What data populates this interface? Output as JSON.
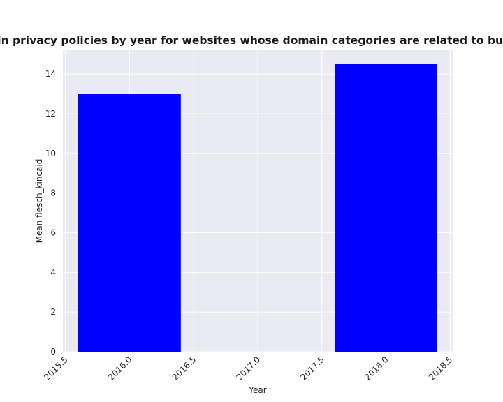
{
  "chart_data": {
    "type": "bar",
    "title": "Mean flesch_kincaid in privacy policies by year for websites whose domain categories are related to business;gambling;sports",
    "xlabel": "Year",
    "ylabel": "Mean flesch_kincaid",
    "x": [
      2016,
      2018
    ],
    "values": [
      13.0,
      14.5
    ],
    "bar_width": 0.8,
    "xlim": [
      2015.48,
      2018.52
    ],
    "ylim": [
      0,
      15.2
    ],
    "xticks": [
      2015.5,
      2016.0,
      2016.5,
      2017.0,
      2017.5,
      2018.0,
      2018.5
    ],
    "xtick_labels": [
      "2015.5",
      "2016.0",
      "2016.5",
      "2017.0",
      "2017.5",
      "2018.0",
      "2018.5"
    ],
    "yticks": [
      0,
      2,
      4,
      6,
      8,
      10,
      12,
      14
    ],
    "ytick_labels": [
      "0",
      "2",
      "4",
      "6",
      "8",
      "10",
      "12",
      "14"
    ],
    "bar_color": "#0000ff",
    "background_color": "#eaeaf2",
    "grid": true,
    "grid_color": "#ffffff"
  }
}
